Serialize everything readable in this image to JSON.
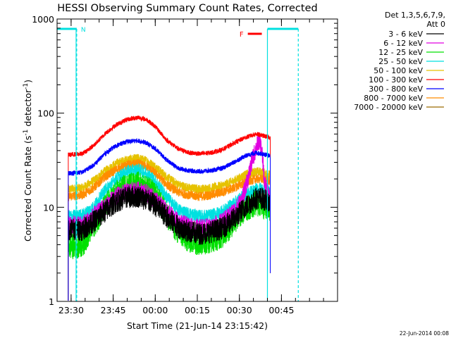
{
  "chart_data": {
    "type": "line",
    "title": "HESSI Observing Summary Count Rates, Corrected",
    "xlabel": "Start Time (21-Jun-14 23:15:42)",
    "ylabel_main": "Corrected Count Rate (s",
    "ylabel_sup1": "-1",
    "ylabel_mid": " detector",
    "ylabel_sup2": "-1",
    "ylabel_end": ")",
    "y_scale": "log",
    "ylim": [
      1,
      1000
    ],
    "xlim_minutes": [
      -35,
      65
    ],
    "x_ticks": [
      {
        "label": "23:30",
        "minute": -30
      },
      {
        "label": "23:45",
        "minute": -15
      },
      {
        "label": "00:00",
        "minute": 0
      },
      {
        "label": "00:15",
        "minute": 15
      },
      {
        "label": "00:30",
        "minute": 30
      },
      {
        "label": "00:45",
        "minute": 45
      }
    ],
    "y_ticks": [
      {
        "label": "1",
        "value": 1
      },
      {
        "label": "10",
        "value": 10
      },
      {
        "label": "100",
        "value": 100
      },
      {
        "label": "1000",
        "value": 1000
      }
    ],
    "legend_header": [
      "Det 1,3,5,6,7,9,",
      "Att 0"
    ],
    "series": [
      {
        "name": "3 - 6 keV",
        "color": "#000000",
        "noise": 0.12,
        "points": [
          [
            -31,
            5.8
          ],
          [
            -26,
            5.8
          ],
          [
            -22,
            7.0
          ],
          [
            -18,
            9.0
          ],
          [
            -14,
            11.5
          ],
          [
            -10,
            12.8
          ],
          [
            -6,
            13.0
          ],
          [
            -3,
            12.0
          ],
          [
            0,
            10.5
          ],
          [
            4,
            8.0
          ],
          [
            8,
            6.2
          ],
          [
            12,
            5.5
          ],
          [
            16,
            5.2
          ],
          [
            20,
            5.5
          ],
          [
            24,
            6.0
          ],
          [
            28,
            7.5
          ],
          [
            32,
            10.0
          ],
          [
            36,
            12.5
          ],
          [
            38,
            12.5
          ],
          [
            41,
            11.0
          ]
        ]
      },
      {
        "name": "6 - 12 keV",
        "color": "#e000e0",
        "noise": 0.1,
        "points": [
          [
            -31,
            6.5
          ],
          [
            -26,
            6.5
          ],
          [
            -22,
            8.0
          ],
          [
            -18,
            10.0
          ],
          [
            -14,
            13.0
          ],
          [
            -10,
            14.5
          ],
          [
            -6,
            15.0
          ],
          [
            -3,
            14.0
          ],
          [
            0,
            12.0
          ],
          [
            4,
            9.0
          ],
          [
            8,
            7.0
          ],
          [
            12,
            6.2
          ],
          [
            16,
            6.0
          ],
          [
            20,
            6.2
          ],
          [
            24,
            7.0
          ],
          [
            28,
            9.0
          ],
          [
            31,
            12.0
          ],
          [
            33,
            20.0
          ],
          [
            35,
            35.0
          ],
          [
            37,
            52.0
          ],
          [
            38,
            40.0
          ],
          [
            39,
            18.0
          ],
          [
            41,
            12.0
          ]
        ]
      },
      {
        "name": "12 - 25 keV",
        "color": "#00e000",
        "noise": 0.14,
        "points": [
          [
            -31,
            3.8
          ],
          [
            -26,
            4.0
          ],
          [
            -22,
            6.5
          ],
          [
            -18,
            10.0
          ],
          [
            -14,
            14.0
          ],
          [
            -10,
            17.0
          ],
          [
            -6,
            17.5
          ],
          [
            -3,
            16.0
          ],
          [
            0,
            13.5
          ],
          [
            4,
            8.5
          ],
          [
            8,
            5.5
          ],
          [
            12,
            4.5
          ],
          [
            16,
            4.2
          ],
          [
            20,
            4.5
          ],
          [
            24,
            5.0
          ],
          [
            28,
            7.0
          ],
          [
            32,
            9.5
          ],
          [
            36,
            11.0
          ],
          [
            38,
            10.5
          ],
          [
            41,
            9.5
          ]
        ]
      },
      {
        "name": "25 - 50 keV",
        "color": "#00e0e0",
        "noise": 0.07,
        "points": [
          [
            -31,
            8.0
          ],
          [
            -26,
            8.2
          ],
          [
            -22,
            10.0
          ],
          [
            -18,
            15.0
          ],
          [
            -14,
            20.0
          ],
          [
            -10,
            24.0
          ],
          [
            -6,
            25.0
          ],
          [
            -3,
            23.0
          ],
          [
            0,
            19.0
          ],
          [
            4,
            13.0
          ],
          [
            8,
            9.5
          ],
          [
            12,
            8.5
          ],
          [
            16,
            8.0
          ],
          [
            20,
            8.2
          ],
          [
            24,
            9.0
          ],
          [
            28,
            11.0
          ],
          [
            32,
            13.5
          ],
          [
            36,
            15.5
          ],
          [
            38,
            15.5
          ],
          [
            41,
            14.0
          ]
        ]
      },
      {
        "name": "50 - 100 keV",
        "color": "#e6c200",
        "noise": 0.05,
        "points": [
          [
            -31,
            15.5
          ],
          [
            -26,
            16.0
          ],
          [
            -22,
            19.0
          ],
          [
            -18,
            24.0
          ],
          [
            -14,
            29.0
          ],
          [
            -10,
            32.0
          ],
          [
            -6,
            33.0
          ],
          [
            -3,
            31.0
          ],
          [
            0,
            27.0
          ],
          [
            4,
            21.0
          ],
          [
            8,
            17.5
          ],
          [
            12,
            16.0
          ],
          [
            16,
            15.5
          ],
          [
            20,
            16.0
          ],
          [
            24,
            17.0
          ],
          [
            28,
            19.0
          ],
          [
            32,
            22.0
          ],
          [
            36,
            24.0
          ],
          [
            38,
            23.5
          ],
          [
            41,
            22.0
          ]
        ]
      },
      {
        "name": "100 - 300 keV",
        "color": "#ff0000",
        "noise": 0.025,
        "points": [
          [
            -31,
            36.0
          ],
          [
            -26,
            37.0
          ],
          [
            -22,
            45.0
          ],
          [
            -18,
            60.0
          ],
          [
            -14,
            75.0
          ],
          [
            -10,
            86.0
          ],
          [
            -6,
            90.0
          ],
          [
            -3,
            85.0
          ],
          [
            0,
            72.0
          ],
          [
            4,
            52.0
          ],
          [
            8,
            42.0
          ],
          [
            12,
            38.0
          ],
          [
            16,
            37.0
          ],
          [
            20,
            38.0
          ],
          [
            24,
            41.0
          ],
          [
            28,
            48.0
          ],
          [
            32,
            55.0
          ],
          [
            36,
            60.0
          ],
          [
            38,
            58.0
          ],
          [
            41,
            55.0
          ]
        ]
      },
      {
        "name": "300 - 800 keV",
        "color": "#0000ff",
        "noise": 0.025,
        "points": [
          [
            -31,
            23.0
          ],
          [
            -26,
            23.5
          ],
          [
            -22,
            28.0
          ],
          [
            -18,
            37.0
          ],
          [
            -14,
            45.0
          ],
          [
            -10,
            50.0
          ],
          [
            -6,
            51.0
          ],
          [
            -3,
            48.0
          ],
          [
            0,
            42.0
          ],
          [
            4,
            32.0
          ],
          [
            8,
            26.0
          ],
          [
            12,
            24.5
          ],
          [
            16,
            24.0
          ],
          [
            20,
            24.5
          ],
          [
            24,
            26.0
          ],
          [
            28,
            30.0
          ],
          [
            32,
            35.0
          ],
          [
            36,
            38.0
          ],
          [
            38,
            37.0
          ],
          [
            41,
            35.0
          ]
        ]
      },
      {
        "name": "800 - 7000 keV",
        "color": "#ff8c00",
        "noise": 0.05,
        "points": [
          [
            -31,
            13.0
          ],
          [
            -26,
            13.5
          ],
          [
            -22,
            16.0
          ],
          [
            -18,
            21.0
          ],
          [
            -14,
            25.0
          ],
          [
            -10,
            28.0
          ],
          [
            -6,
            29.0
          ],
          [
            -3,
            27.0
          ],
          [
            0,
            23.0
          ],
          [
            4,
            17.5
          ],
          [
            8,
            14.5
          ],
          [
            12,
            13.5
          ],
          [
            16,
            13.0
          ],
          [
            20,
            13.5
          ],
          [
            24,
            14.5
          ],
          [
            28,
            16.0
          ],
          [
            32,
            18.5
          ],
          [
            36,
            20.0
          ],
          [
            38,
            20.0
          ],
          [
            41,
            19.0
          ]
        ]
      },
      {
        "name": "7000 - 20000 keV",
        "color": "#9a6a00",
        "noise": 0.0,
        "points": []
      }
    ],
    "overlays": [
      {
        "type": "night",
        "label": "N",
        "color": "#00e0e0",
        "start_minute": -35,
        "end_minute": -28
      },
      {
        "type": "night",
        "label": "",
        "color": "#00e0e0",
        "start_minute": 40,
        "end_minute": 51
      },
      {
        "type": "flare",
        "label": "F",
        "color": "#ff0000",
        "start_minute": 33,
        "end_minute": 38
      }
    ],
    "grid": false,
    "legend_position": "right"
  },
  "footer": {
    "date": "22-Jun-2014 00:08"
  }
}
